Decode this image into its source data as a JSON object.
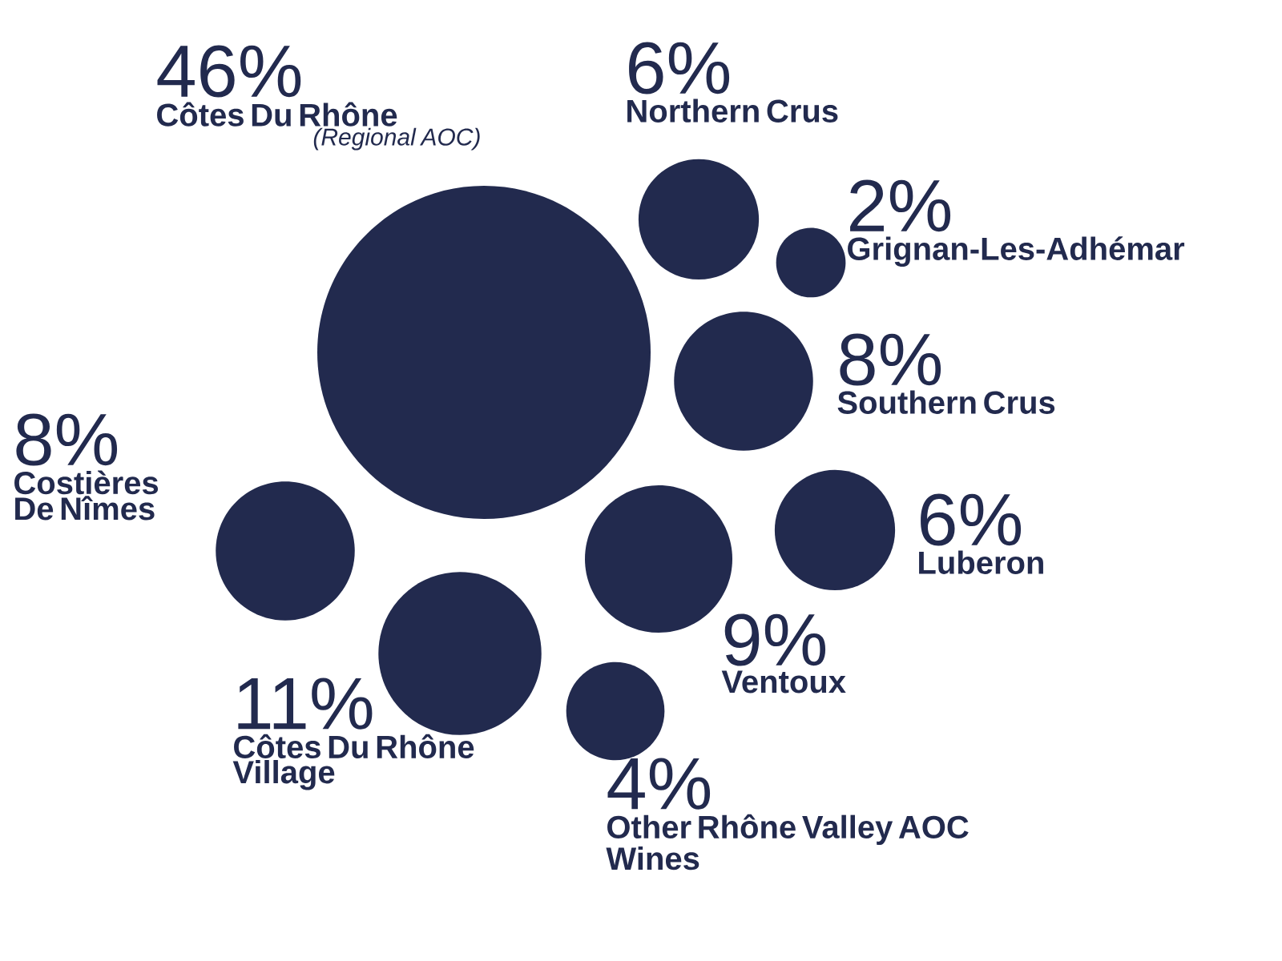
{
  "chart_data": {
    "type": "other",
    "categories": [
      "Côtes Du Rhône",
      "Northern Crus",
      "Grignan-Les-Adhémar",
      "Southern Crus",
      "Costières De Nîmes",
      "Luberon",
      "Ventoux",
      "Côtes Du Rhône Village",
      "Other Rhône Valley AOC Wines"
    ],
    "values": [
      46,
      6,
      2,
      8,
      8,
      6,
      9,
      11,
      4
    ],
    "value_labels": [
      "46%",
      "6%",
      "2%",
      "8%",
      "8%",
      "6%",
      "9%",
      "11%",
      "4%"
    ],
    "color": "#222a4e",
    "annotations": [
      "(Regional AOC)"
    ]
  }
}
